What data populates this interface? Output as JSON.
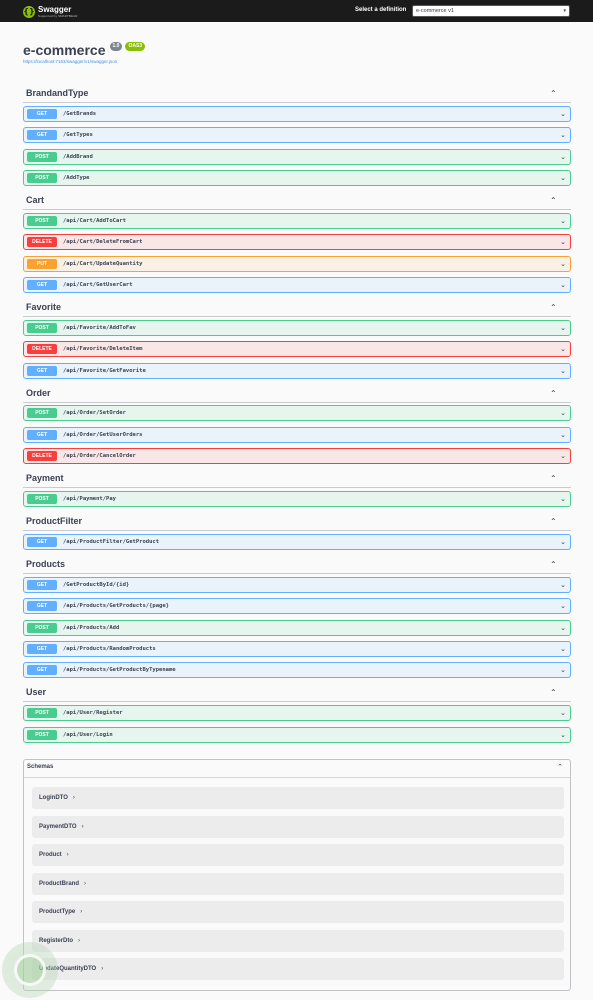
{
  "topbar": {
    "logo_name": "Swagger",
    "logo_sub": "Supported by SMARTBEAR",
    "definition_label": "Select a definition",
    "definition_value": "e-commerce v1"
  },
  "info": {
    "title": "e-commerce",
    "version": "1.0",
    "oas": "OAS3",
    "url": "https://localhost:7163/swagger/v1/swagger.json"
  },
  "sections": [
    {
      "name": "BrandandType",
      "ops": [
        {
          "method": "GET",
          "path": "/GetBrands"
        },
        {
          "method": "GET",
          "path": "/GetTypes"
        },
        {
          "method": "POST",
          "path": "/AddBrand"
        },
        {
          "method": "POST",
          "path": "/AddType"
        }
      ]
    },
    {
      "name": "Cart",
      "ops": [
        {
          "method": "POST",
          "path": "/api/Cart/AddToCart"
        },
        {
          "method": "DELETE",
          "path": "/api/Cart/DeleteFromCart"
        },
        {
          "method": "PUT",
          "path": "/api/Cart/UpdateQuantity"
        },
        {
          "method": "GET",
          "path": "/api/Cart/GetUserCart"
        }
      ]
    },
    {
      "name": "Favorite",
      "ops": [
        {
          "method": "POST",
          "path": "/api/Favorite/AddToFav"
        },
        {
          "method": "DELETE",
          "path": "/api/Favorite/DeleteItem"
        },
        {
          "method": "GET",
          "path": "/api/Favorite/GetFavorite"
        }
      ]
    },
    {
      "name": "Order",
      "ops": [
        {
          "method": "POST",
          "path": "/api/Order/SetOrder"
        },
        {
          "method": "GET",
          "path": "/api/Order/GetUserOrders"
        },
        {
          "method": "DELETE",
          "path": "/api/Order/CancelOrder"
        }
      ]
    },
    {
      "name": "Payment",
      "ops": [
        {
          "method": "POST",
          "path": "/api/Payment/Pay"
        }
      ]
    },
    {
      "name": "ProductFilter",
      "ops": [
        {
          "method": "GET",
          "path": "/api/ProductFilter/GetProduct"
        }
      ]
    },
    {
      "name": "Products",
      "ops": [
        {
          "method": "GET",
          "path": "/GetProductById/{id}"
        },
        {
          "method": "GET",
          "path": "/api/Products/GetProducts/{page}"
        },
        {
          "method": "POST",
          "path": "/api/Products/Add"
        },
        {
          "method": "GET",
          "path": "/api/Products/RandomProducts"
        },
        {
          "method": "GET",
          "path": "/api/Products/GetProductByTypename"
        }
      ]
    },
    {
      "name": "User",
      "ops": [
        {
          "method": "POST",
          "path": "/api/User/Register"
        },
        {
          "method": "POST",
          "path": "/api/User/Login"
        }
      ]
    }
  ],
  "schemas": {
    "title": "Schemas",
    "models": [
      "LoginDTO",
      "PaymentDTO",
      "Product",
      "ProductBrand",
      "ProductType",
      "RegisterDto",
      "UpdateQuantityDTO"
    ]
  },
  "colors": {
    "GET": "#61affe",
    "POST": "#49cc90",
    "DELETE": "#f93e3e",
    "PUT": "#fca130",
    "topbar": "#1b1b1b"
  }
}
